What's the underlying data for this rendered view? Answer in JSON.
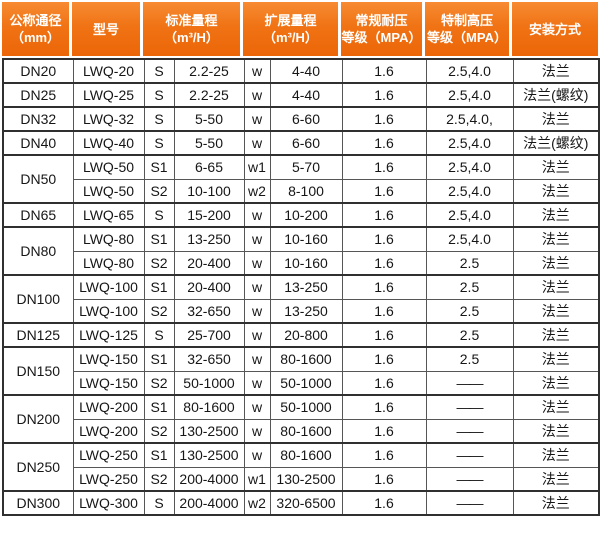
{
  "colors": {
    "header_orange": "#ee6c0d",
    "header_orange_light": "#f78b33",
    "border_dark": "#303030",
    "border_inner": "#565656",
    "header_text": "#ffffff",
    "body_text": "#161616"
  },
  "table": {
    "headers": [
      {
        "name": "nominal-diameter",
        "lines": [
          "公称通径",
          "（mm）"
        ],
        "cols": 1
      },
      {
        "name": "model",
        "lines": [
          "型号"
        ],
        "cols": 1
      },
      {
        "name": "standard-range",
        "lines": [
          "标准量程",
          "（m³/H）"
        ],
        "cols": 2
      },
      {
        "name": "extended-range",
        "lines": [
          "扩展量程",
          "（m³/H）"
        ],
        "cols": 2
      },
      {
        "name": "regular-pressure",
        "lines": [
          "常规耐压",
          "等级（MPA）"
        ],
        "cols": 1
      },
      {
        "name": "special-pressure",
        "lines": [
          "特制高压",
          "等级（MPA）"
        ],
        "cols": 1
      },
      {
        "name": "installation",
        "lines": [
          "安装方式"
        ],
        "cols": 1
      }
    ],
    "rows": [
      {
        "dn": "DN20",
        "rowspan": 1,
        "model": "LWQ-20",
        "std_code": "S",
        "std_range": "2.2-25",
        "ext_code": "w",
        "ext_range": "4-40",
        "pressure": "1.6",
        "high_pressure": "2.5,4.0",
        "install": "法兰"
      },
      {
        "dn": "DN25",
        "rowspan": 1,
        "model": "LWQ-25",
        "std_code": "S",
        "std_range": "2.2-25",
        "ext_code": "w",
        "ext_range": "4-40",
        "pressure": "1.6",
        "high_pressure": "2.5,4.0",
        "install": "法兰(螺纹)"
      },
      {
        "dn": "DN32",
        "rowspan": 1,
        "model": "LWQ-32",
        "std_code": "S",
        "std_range": "5-50",
        "ext_code": "w",
        "ext_range": "6-60",
        "pressure": "1.6",
        "high_pressure": "2.5,4.0,",
        "install": "法兰"
      },
      {
        "dn": "DN40",
        "rowspan": 1,
        "model": "LWQ-40",
        "std_code": "S",
        "std_range": "5-50",
        "ext_code": "w",
        "ext_range": "6-60",
        "pressure": "1.6",
        "high_pressure": "2.5,4.0",
        "install": "法兰(螺纹)"
      },
      {
        "dn": "DN50",
        "rowspan": 2,
        "model": "LWQ-50",
        "std_code": "S1",
        "std_range": "6-65",
        "ext_code": "w1",
        "ext_range": "5-70",
        "pressure": "1.6",
        "high_pressure": "2.5,4.0",
        "install": "法兰"
      },
      {
        "dn": null,
        "rowspan": 0,
        "model": "LWQ-50",
        "std_code": "S2",
        "std_range": "10-100",
        "ext_code": "w2",
        "ext_range": "8-100",
        "pressure": "1.6",
        "high_pressure": "2.5,4.0",
        "install": "法兰"
      },
      {
        "dn": "DN65",
        "rowspan": 1,
        "model": "LWQ-65",
        "std_code": "S",
        "std_range": "15-200",
        "ext_code": "w",
        "ext_range": "10-200",
        "pressure": "1.6",
        "high_pressure": "2.5,4.0",
        "install": "法兰"
      },
      {
        "dn": "DN80",
        "rowspan": 2,
        "model": "LWQ-80",
        "std_code": "S1",
        "std_range": "13-250",
        "ext_code": "w",
        "ext_range": "10-160",
        "pressure": "1.6",
        "high_pressure": "2.5,4.0",
        "install": "法兰"
      },
      {
        "dn": null,
        "rowspan": 0,
        "model": "LWQ-80",
        "std_code": "S2",
        "std_range": "20-400",
        "ext_code": "w",
        "ext_range": "10-160",
        "pressure": "1.6",
        "high_pressure": "2.5",
        "install": "法兰"
      },
      {
        "dn": "DN100",
        "rowspan": 2,
        "model": "LWQ-100",
        "std_code": "S1",
        "std_range": "20-400",
        "ext_code": "w",
        "ext_range": "13-250",
        "pressure": "1.6",
        "high_pressure": "2.5",
        "install": "法兰"
      },
      {
        "dn": null,
        "rowspan": 0,
        "model": "LWQ-100",
        "std_code": "S2",
        "std_range": "32-650",
        "ext_code": "w",
        "ext_range": "13-250",
        "pressure": "1.6",
        "high_pressure": "2.5",
        "install": "法兰"
      },
      {
        "dn": "DN125",
        "rowspan": 1,
        "model": "LWQ-125",
        "std_code": "S",
        "std_range": "25-700",
        "ext_code": "w",
        "ext_range": "20-800",
        "pressure": "1.6",
        "high_pressure": "2.5",
        "install": "法兰"
      },
      {
        "dn": "DN150",
        "rowspan": 2,
        "model": "LWQ-150",
        "std_code": "S1",
        "std_range": "32-650",
        "ext_code": "w",
        "ext_range": "80-1600",
        "pressure": "1.6",
        "high_pressure": "2.5",
        "install": "法兰"
      },
      {
        "dn": null,
        "rowspan": 0,
        "model": "LWQ-150",
        "std_code": "S2",
        "std_range": "50-1000",
        "ext_code": "w",
        "ext_range": "50-1000",
        "pressure": "1.6",
        "high_pressure": "——",
        "install": "法兰"
      },
      {
        "dn": "DN200",
        "rowspan": 2,
        "model": "LWQ-200",
        "std_code": "S1",
        "std_range": "80-1600",
        "ext_code": "w",
        "ext_range": "50-1000",
        "pressure": "1.6",
        "high_pressure": "——",
        "install": "法兰"
      },
      {
        "dn": null,
        "rowspan": 0,
        "model": "LWQ-200",
        "std_code": "S2",
        "std_range": "130-2500",
        "ext_code": "w",
        "ext_range": "80-1600",
        "pressure": "1.6",
        "high_pressure": "——",
        "install": "法兰"
      },
      {
        "dn": "DN250",
        "rowspan": 2,
        "model": "LWQ-250",
        "std_code": "S1",
        "std_range": "130-2500",
        "ext_code": "w",
        "ext_range": "80-1600",
        "pressure": "1.6",
        "high_pressure": "——",
        "install": "法兰"
      },
      {
        "dn": null,
        "rowspan": 0,
        "model": "LWQ-250",
        "std_code": "S2",
        "std_range": "200-4000",
        "ext_code": "w1",
        "ext_range": "130-2500",
        "pressure": "1.6",
        "high_pressure": "——",
        "install": "法兰"
      },
      {
        "dn": "DN300",
        "rowspan": 1,
        "model": "LWQ-300",
        "std_code": "S",
        "std_range": "200-4000",
        "ext_code": "w2",
        "ext_range": "320-6500",
        "pressure": "1.6",
        "high_pressure": "——",
        "install": "法兰"
      }
    ]
  }
}
